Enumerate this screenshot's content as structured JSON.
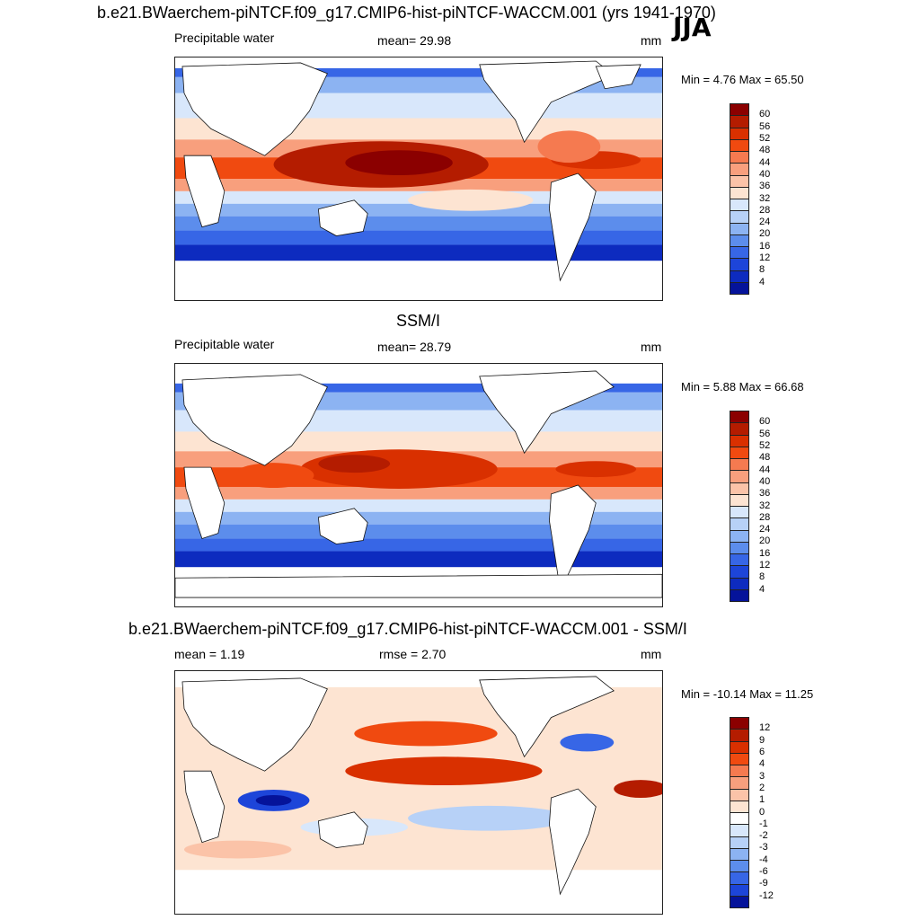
{
  "season": "JJA",
  "panels": [
    {
      "title": "b.e21.BWaerchem-piNTCF.f09_g17.CMIP6-hist-piNTCF-WACCM.001 (yrs 1941-1970)",
      "left_label": "Precipitable water",
      "center_label": "mean=  29.98",
      "units": "mm",
      "minmax": "Min =   4.76 Max =  65.50",
      "colorbar_ticks": [
        "60",
        "56",
        "52",
        "48",
        "44",
        "40",
        "36",
        "32",
        "28",
        "24",
        "20",
        "16",
        "12",
        "8",
        "4"
      ],
      "colors": [
        "#8b0000",
        "#b41c00",
        "#d93000",
        "#f04a10",
        "#f57a50",
        "#f89f7d",
        "#fbc3a8",
        "#fde4d2",
        "#d8e7fb",
        "#b7d1f7",
        "#8cb3f2",
        "#5c8dec",
        "#3766e6",
        "#1d45d9",
        "#0d2bbf",
        "#05139a"
      ]
    },
    {
      "title": "SSM/I",
      "left_label": "Precipitable water",
      "center_label": "mean=  28.79",
      "units": "mm",
      "minmax": "Min =   5.88 Max =  66.68",
      "colorbar_ticks": [
        "60",
        "56",
        "52",
        "48",
        "44",
        "40",
        "36",
        "32",
        "28",
        "24",
        "20",
        "16",
        "12",
        "8",
        "4"
      ],
      "colors": [
        "#8b0000",
        "#b41c00",
        "#d93000",
        "#f04a10",
        "#f57a50",
        "#f89f7d",
        "#fbc3a8",
        "#fde4d2",
        "#d8e7fb",
        "#b7d1f7",
        "#8cb3f2",
        "#5c8dec",
        "#3766e6",
        "#1d45d9",
        "#0d2bbf",
        "#05139a"
      ]
    },
    {
      "title": "b.e21.BWaerchem-piNTCF.f09_g17.CMIP6-hist-piNTCF-WACCM.001 - SSM/I",
      "left_label": "mean =   1.19",
      "center_label": "rmse =   2.70",
      "units": "mm",
      "minmax": "Min = -10.14 Max =  11.25",
      "colorbar_ticks": [
        "12",
        "9",
        "6",
        "4",
        "3",
        "2",
        "1",
        "0",
        "-1",
        "-2",
        "-3",
        "-4",
        "-6",
        "-9",
        "-12"
      ],
      "colors": [
        "#8b0000",
        "#b41c00",
        "#d93000",
        "#f04a10",
        "#f57a50",
        "#f89f7d",
        "#fbc3a8",
        "#fde4d2",
        "#ffffff",
        "#d8e7fb",
        "#b7d1f7",
        "#8cb3f2",
        "#5c8dec",
        "#3766e6",
        "#1d45d9",
        "#05139a"
      ]
    }
  ]
}
